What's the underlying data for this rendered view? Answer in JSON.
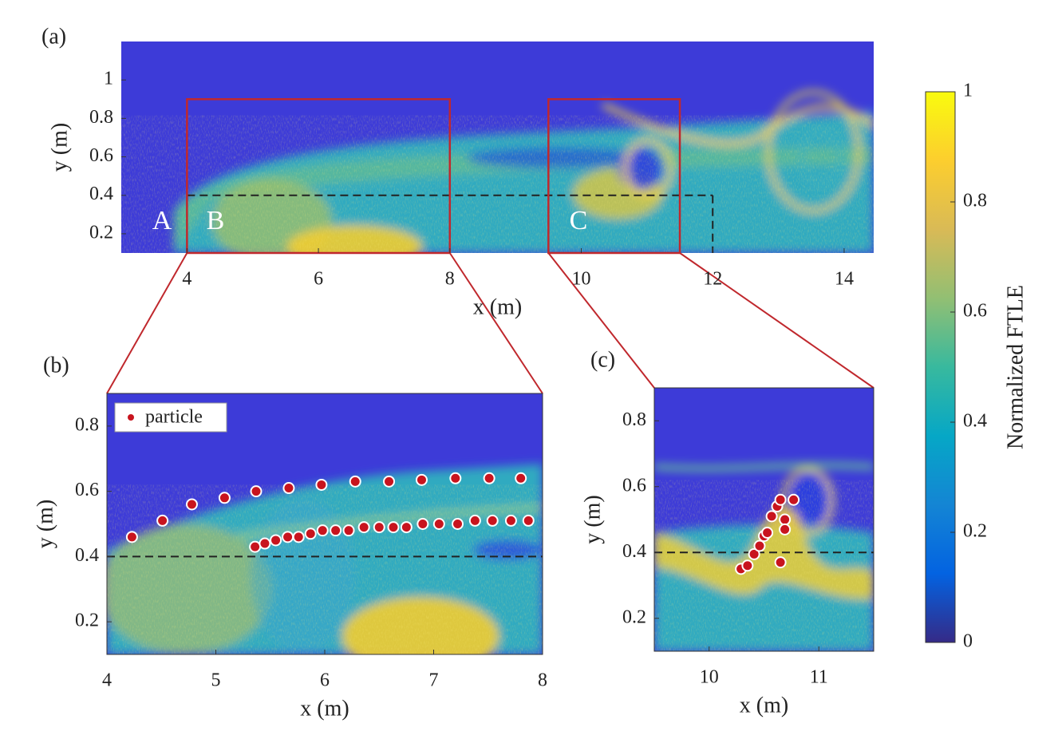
{
  "chart_data": [
    {
      "type": "heatmap",
      "label": "(a)",
      "xlabel": "x (m)",
      "ylabel": "y (m)",
      "xlim": [
        3,
        14.45
      ],
      "ylim": [
        0.1,
        1.2
      ],
      "xticks": [
        4,
        6,
        8,
        10,
        12,
        14
      ],
      "yticks": [
        0.2,
        0.4,
        0.6,
        0.8,
        1
      ],
      "hline": 0.4,
      "vline": 12,
      "annotations": [
        "A",
        "B",
        "C"
      ]
    },
    {
      "type": "heatmap",
      "label": "(b)",
      "xlabel": "x (m)",
      "ylabel": "y (m)",
      "xlim": [
        4,
        8
      ],
      "ylim": [
        0.1,
        0.9
      ],
      "xticks": [
        4,
        5,
        6,
        7,
        8
      ],
      "yticks": [
        0.2,
        0.4,
        0.6,
        0.8
      ],
      "hline": 0.4,
      "legend": "upper left",
      "series": [
        {
          "name": "particle",
          "color": "#c8141e",
          "x": [
            4.23,
            4.51,
            4.78,
            5.08,
            5.37,
            5.67,
            5.97,
            6.28,
            6.59,
            6.89,
            7.2,
            7.51,
            7.8,
            5.36,
            5.45,
            5.55,
            5.66,
            5.76,
            5.87,
            5.98,
            6.1,
            6.22,
            6.36,
            6.5,
            6.63,
            6.75,
            6.9,
            7.05,
            7.22,
            7.38,
            7.54,
            7.71,
            7.87
          ],
          "values": [
            0.46,
            0.51,
            0.56,
            0.58,
            0.6,
            0.61,
            0.62,
            0.63,
            0.63,
            0.635,
            0.64,
            0.64,
            0.64,
            0.43,
            0.44,
            0.45,
            0.46,
            0.46,
            0.47,
            0.48,
            0.48,
            0.48,
            0.49,
            0.49,
            0.49,
            0.49,
            0.5,
            0.5,
            0.5,
            0.51,
            0.51,
            0.51,
            0.51
          ]
        }
      ]
    },
    {
      "type": "heatmap",
      "label": "(c)",
      "xlabel": "x (m)",
      "ylabel": "y (m)",
      "xlim": [
        9.5,
        11.5
      ],
      "ylim": [
        0.1,
        0.9
      ],
      "xticks": [
        10,
        11
      ],
      "yticks": [
        0.2,
        0.4,
        0.6,
        0.8
      ],
      "hline": 0.4,
      "series": [
        {
          "name": "particle",
          "color": "#c8141e",
          "x": [
            10.29,
            10.35,
            10.41,
            10.46,
            10.5,
            10.53,
            10.57,
            10.62,
            10.65,
            10.69,
            10.69,
            10.65,
            10.77
          ],
          "values": [
            0.35,
            0.36,
            0.395,
            0.42,
            0.45,
            0.46,
            0.51,
            0.54,
            0.56,
            0.5,
            0.47,
            0.37,
            0.56
          ]
        }
      ]
    },
    {
      "type": "colorbar",
      "label": "Normalized FTLE",
      "ylim": [
        0,
        1
      ],
      "yticks": [
        0,
        0.2,
        0.4,
        0.6,
        0.8,
        1
      ]
    }
  ]
}
